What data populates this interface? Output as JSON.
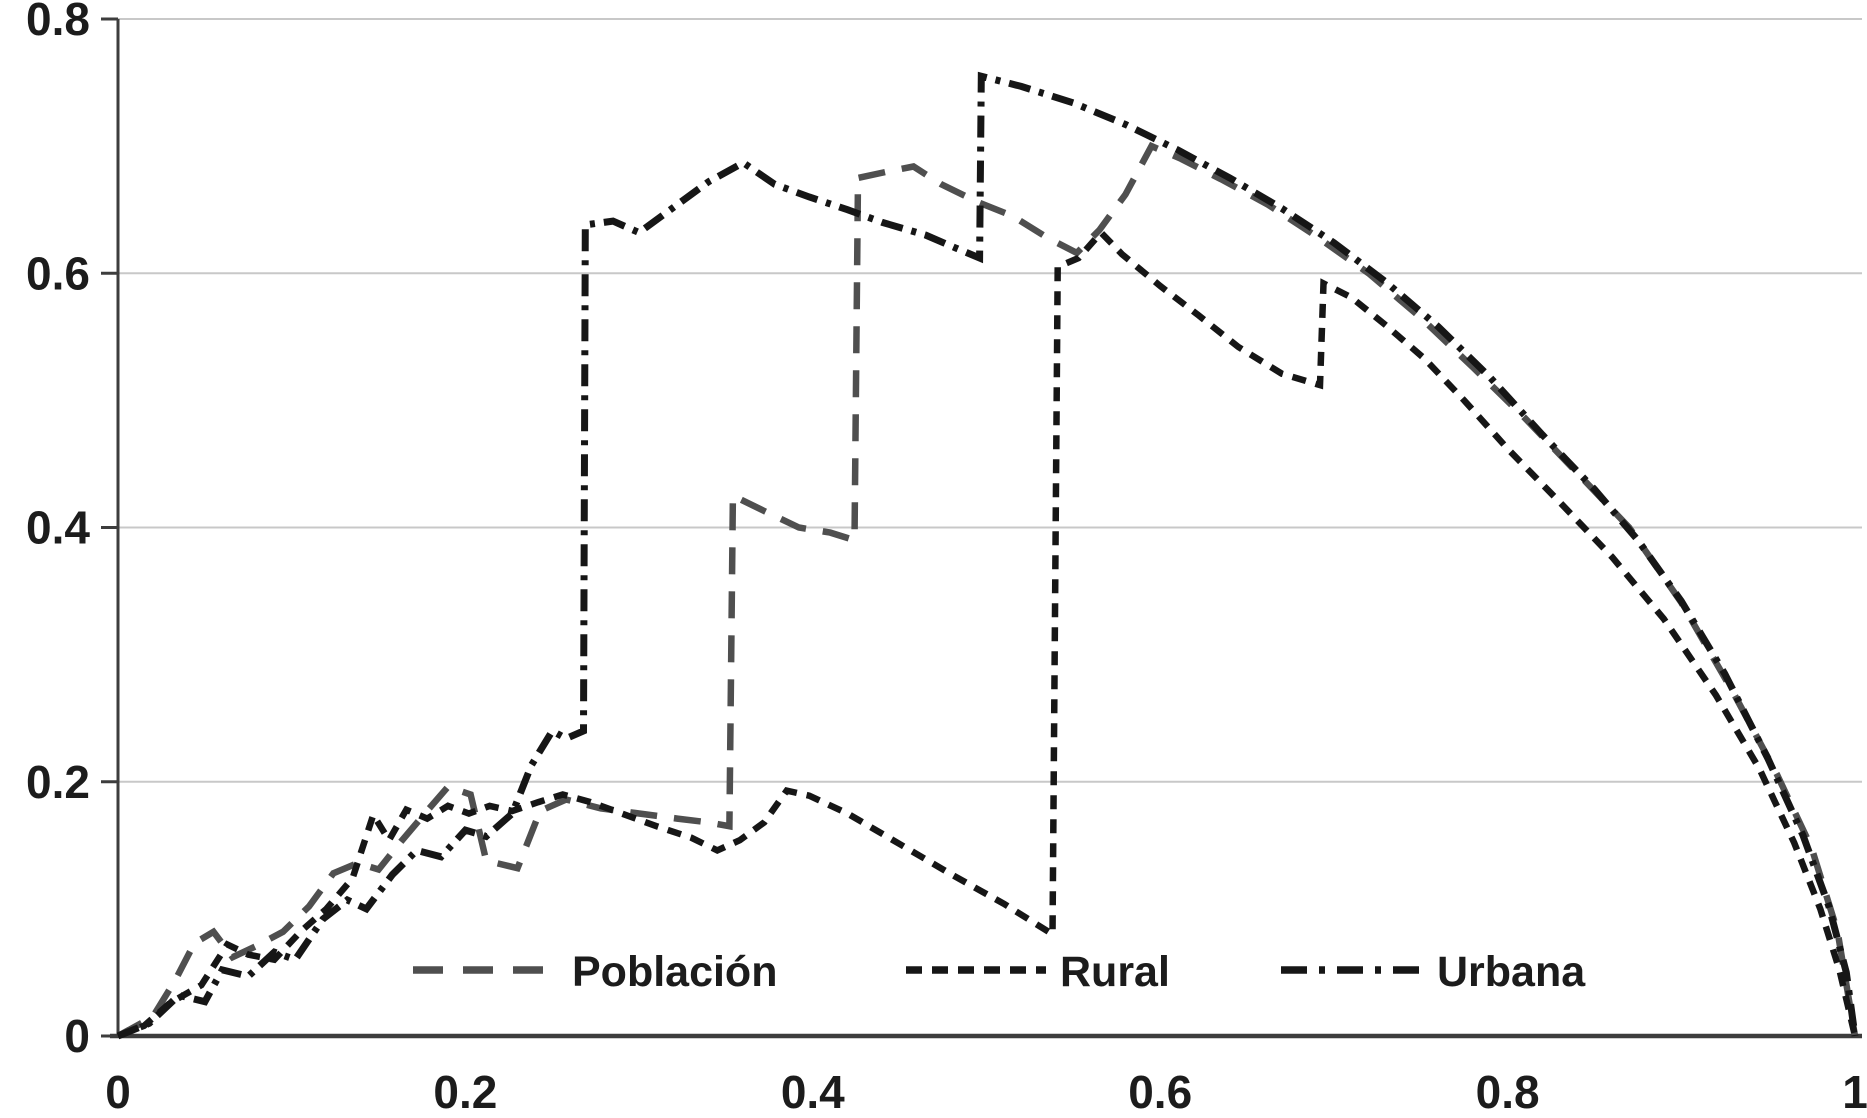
{
  "chart_data": {
    "type": "line",
    "description": "Grayscale dashed-line chart of three concentration curves rising from the origin with step jumps and a common concave tail falling to (1,0)",
    "title": "",
    "xlabel": "",
    "ylabel": "",
    "xlim": [
      0,
      1
    ],
    "ylim": [
      0,
      0.8
    ],
    "x_ticks": [
      {
        "value": 0,
        "label": "0"
      },
      {
        "value": 0.2,
        "label": "0.2"
      },
      {
        "value": 0.4,
        "label": "0.4"
      },
      {
        "value": 0.6,
        "label": "0.6"
      },
      {
        "value": 0.8,
        "label": "0.8"
      },
      {
        "value": 1,
        "label": "1"
      }
    ],
    "y_ticks": [
      {
        "value": 0,
        "label": "0"
      },
      {
        "value": 0.2,
        "label": "0.2"
      },
      {
        "value": 0.4,
        "label": "0.4"
      },
      {
        "value": 0.6,
        "label": "0.6"
      },
      {
        "value": 0.8,
        "label": "0.8"
      }
    ],
    "grid": "horizontal-only",
    "legend_position": "inside-bottom-center",
    "colors": {
      "poblacion": "#4f4f4f",
      "rural": "#161616",
      "urbana": "#161616",
      "gridline": "#c8c8c8",
      "axis": "#3d3d3d",
      "text": "#1c1c1c",
      "background": "#ffffff"
    },
    "series": [
      {
        "name": "Población",
        "dash_style": "long-dash",
        "color": "#4f4f4f",
        "points": [
          [
            0,
            0
          ],
          [
            0.02,
            0.015
          ],
          [
            0.033,
            0.044
          ],
          [
            0.044,
            0.073
          ],
          [
            0.055,
            0.082
          ],
          [
            0.066,
            0.062
          ],
          [
            0.08,
            0.071
          ],
          [
            0.095,
            0.082
          ],
          [
            0.11,
            0.102
          ],
          [
            0.124,
            0.128
          ],
          [
            0.138,
            0.136
          ],
          [
            0.15,
            0.131
          ],
          [
            0.163,
            0.153
          ],
          [
            0.176,
            0.174
          ],
          [
            0.19,
            0.196
          ],
          [
            0.203,
            0.19
          ],
          [
            0.212,
            0.138
          ],
          [
            0.23,
            0.132
          ],
          [
            0.243,
            0.177
          ],
          [
            0.258,
            0.186
          ],
          [
            0.278,
            0.179
          ],
          [
            0.3,
            0.175
          ],
          [
            0.322,
            0.171
          ],
          [
            0.34,
            0.168
          ],
          [
            0.352,
            0.165
          ],
          [
            0.354,
            0.425
          ],
          [
            0.372,
            0.413
          ],
          [
            0.392,
            0.4
          ],
          [
            0.41,
            0.396
          ],
          [
            0.424,
            0.39
          ],
          [
            0.426,
            0.675
          ],
          [
            0.443,
            0.68
          ],
          [
            0.458,
            0.684
          ],
          [
            0.474,
            0.67
          ],
          [
            0.495,
            0.656
          ],
          [
            0.515,
            0.645
          ],
          [
            0.535,
            0.628
          ],
          [
            0.552,
            0.616
          ],
          [
            0.565,
            0.634
          ],
          [
            0.58,
            0.662
          ],
          [
            0.595,
            0.7
          ],
          [
            0.612,
            0.69
          ],
          [
            0.635,
            0.674
          ],
          [
            0.662,
            0.654
          ],
          [
            0.69,
            0.629
          ],
          [
            0.72,
            0.6
          ],
          [
            0.75,
            0.565
          ],
          [
            0.78,
            0.526
          ],
          [
            0.81,
            0.486
          ],
          [
            0.84,
            0.443
          ],
          [
            0.87,
            0.4
          ],
          [
            0.9,
            0.341
          ],
          [
            0.93,
            0.27
          ],
          [
            0.955,
            0.206
          ],
          [
            0.975,
            0.148
          ],
          [
            0.99,
            0.082
          ],
          [
            1,
            0
          ]
        ]
      },
      {
        "name": "Rural",
        "dash_style": "short-dash",
        "color": "#161616",
        "points": [
          [
            0,
            0
          ],
          [
            0.015,
            0.008
          ],
          [
            0.03,
            0.026
          ],
          [
            0.048,
            0.04
          ],
          [
            0.063,
            0.072
          ],
          [
            0.075,
            0.064
          ],
          [
            0.09,
            0.06
          ],
          [
            0.105,
            0.082
          ],
          [
            0.12,
            0.1
          ],
          [
            0.135,
            0.124
          ],
          [
            0.147,
            0.174
          ],
          [
            0.156,
            0.154
          ],
          [
            0.166,
            0.178
          ],
          [
            0.178,
            0.171
          ],
          [
            0.19,
            0.181
          ],
          [
            0.202,
            0.175
          ],
          [
            0.214,
            0.181
          ],
          [
            0.227,
            0.177
          ],
          [
            0.242,
            0.184
          ],
          [
            0.256,
            0.19
          ],
          [
            0.272,
            0.184
          ],
          [
            0.29,
            0.175
          ],
          [
            0.31,
            0.165
          ],
          [
            0.33,
            0.156
          ],
          [
            0.345,
            0.146
          ],
          [
            0.358,
            0.154
          ],
          [
            0.372,
            0.168
          ],
          [
            0.385,
            0.193
          ],
          [
            0.398,
            0.189
          ],
          [
            0.42,
            0.175
          ],
          [
            0.45,
            0.151
          ],
          [
            0.48,
            0.127
          ],
          [
            0.51,
            0.104
          ],
          [
            0.538,
            0.08
          ],
          [
            0.541,
            0.605
          ],
          [
            0.553,
            0.612
          ],
          [
            0.566,
            0.632
          ],
          [
            0.578,
            0.615
          ],
          [
            0.6,
            0.59
          ],
          [
            0.622,
            0.567
          ],
          [
            0.645,
            0.542
          ],
          [
            0.67,
            0.521
          ],
          [
            0.692,
            0.512
          ],
          [
            0.694,
            0.592
          ],
          [
            0.71,
            0.581
          ],
          [
            0.73,
            0.559
          ],
          [
            0.752,
            0.533
          ],
          [
            0.775,
            0.5
          ],
          [
            0.8,
            0.462
          ],
          [
            0.83,
            0.42
          ],
          [
            0.86,
            0.377
          ],
          [
            0.89,
            0.328
          ],
          [
            0.92,
            0.268
          ],
          [
            0.945,
            0.21
          ],
          [
            0.965,
            0.152
          ],
          [
            0.98,
            0.1
          ],
          [
            0.991,
            0.052
          ],
          [
            1,
            0
          ]
        ]
      },
      {
        "name": "Urbana",
        "dash_style": "dash-dot",
        "color": "#161616",
        "points": [
          [
            0,
            0
          ],
          [
            0.018,
            0.01
          ],
          [
            0.035,
            0.032
          ],
          [
            0.05,
            0.027
          ],
          [
            0.06,
            0.052
          ],
          [
            0.075,
            0.047
          ],
          [
            0.09,
            0.066
          ],
          [
            0.102,
            0.06
          ],
          [
            0.118,
            0.092
          ],
          [
            0.132,
            0.107
          ],
          [
            0.143,
            0.1
          ],
          [
            0.158,
            0.127
          ],
          [
            0.172,
            0.146
          ],
          [
            0.186,
            0.141
          ],
          [
            0.2,
            0.162
          ],
          [
            0.212,
            0.157
          ],
          [
            0.227,
            0.175
          ],
          [
            0.238,
            0.213
          ],
          [
            0.25,
            0.24
          ],
          [
            0.258,
            0.234
          ],
          [
            0.268,
            0.24
          ],
          [
            0.269,
            0.638
          ],
          [
            0.285,
            0.641
          ],
          [
            0.3,
            0.632
          ],
          [
            0.318,
            0.65
          ],
          [
            0.34,
            0.672
          ],
          [
            0.36,
            0.687
          ],
          [
            0.378,
            0.67
          ],
          [
            0.398,
            0.66
          ],
          [
            0.42,
            0.65
          ],
          [
            0.44,
            0.64
          ],
          [
            0.465,
            0.63
          ],
          [
            0.482,
            0.62
          ],
          [
            0.496,
            0.612
          ],
          [
            0.497,
            0.755
          ],
          [
            0.52,
            0.747
          ],
          [
            0.55,
            0.734
          ],
          [
            0.58,
            0.717
          ],
          [
            0.61,
            0.697
          ],
          [
            0.64,
            0.675
          ],
          [
            0.67,
            0.651
          ],
          [
            0.7,
            0.624
          ],
          [
            0.73,
            0.593
          ],
          [
            0.76,
            0.558
          ],
          [
            0.79,
            0.518
          ],
          [
            0.82,
            0.473
          ],
          [
            0.85,
            0.43
          ],
          [
            0.875,
            0.39
          ],
          [
            0.9,
            0.342
          ],
          [
            0.925,
            0.285
          ],
          [
            0.95,
            0.218
          ],
          [
            0.97,
            0.158
          ],
          [
            0.985,
            0.102
          ],
          [
            0.995,
            0.05
          ],
          [
            1,
            0
          ]
        ]
      }
    ],
    "legend": [
      {
        "label": "Población"
      },
      {
        "label": "Rural"
      },
      {
        "label": "Urbana"
      }
    ]
  }
}
